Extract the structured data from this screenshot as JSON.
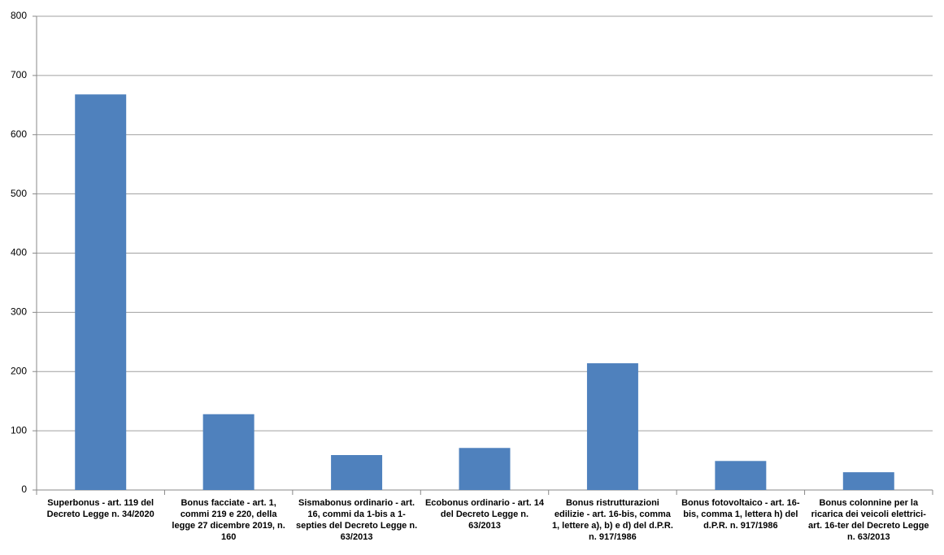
{
  "chart_data": {
    "type": "bar",
    "categories": [
      "Superbonus - art. 119 del Decreto Legge n. 34/2020",
      "Bonus facciate - art. 1, commi 219 e 220, della legge 27 dicembre 2019, n. 160",
      "Sismabonus ordinario - art. 16, commi da 1-bis a 1-septies del Decreto Legge n. 63/2013",
      "Ecobonus ordinario - art. 14 del Decreto Legge n. 63/2013",
      "Bonus ristrutturazioni edilizie - art. 16-bis, comma 1, lettere a), b) e d) del d.P.R. n. 917/1986",
      "Bonus fotovoltaico - art. 16-bis, comma 1, lettera h) del d.P.R. n. 917/1986",
      "Bonus colonnine per la ricarica dei veicoli elettrici- art. 16-ter del Decreto Legge n. 63/2013"
    ],
    "values": [
      668,
      128,
      59,
      71,
      214,
      49,
      30
    ],
    "color": "#4f81bd",
    "ylim": [
      0,
      800
    ],
    "yticks": [
      0,
      100,
      200,
      300,
      400,
      500,
      600,
      700,
      800
    ],
    "grid": true
  }
}
